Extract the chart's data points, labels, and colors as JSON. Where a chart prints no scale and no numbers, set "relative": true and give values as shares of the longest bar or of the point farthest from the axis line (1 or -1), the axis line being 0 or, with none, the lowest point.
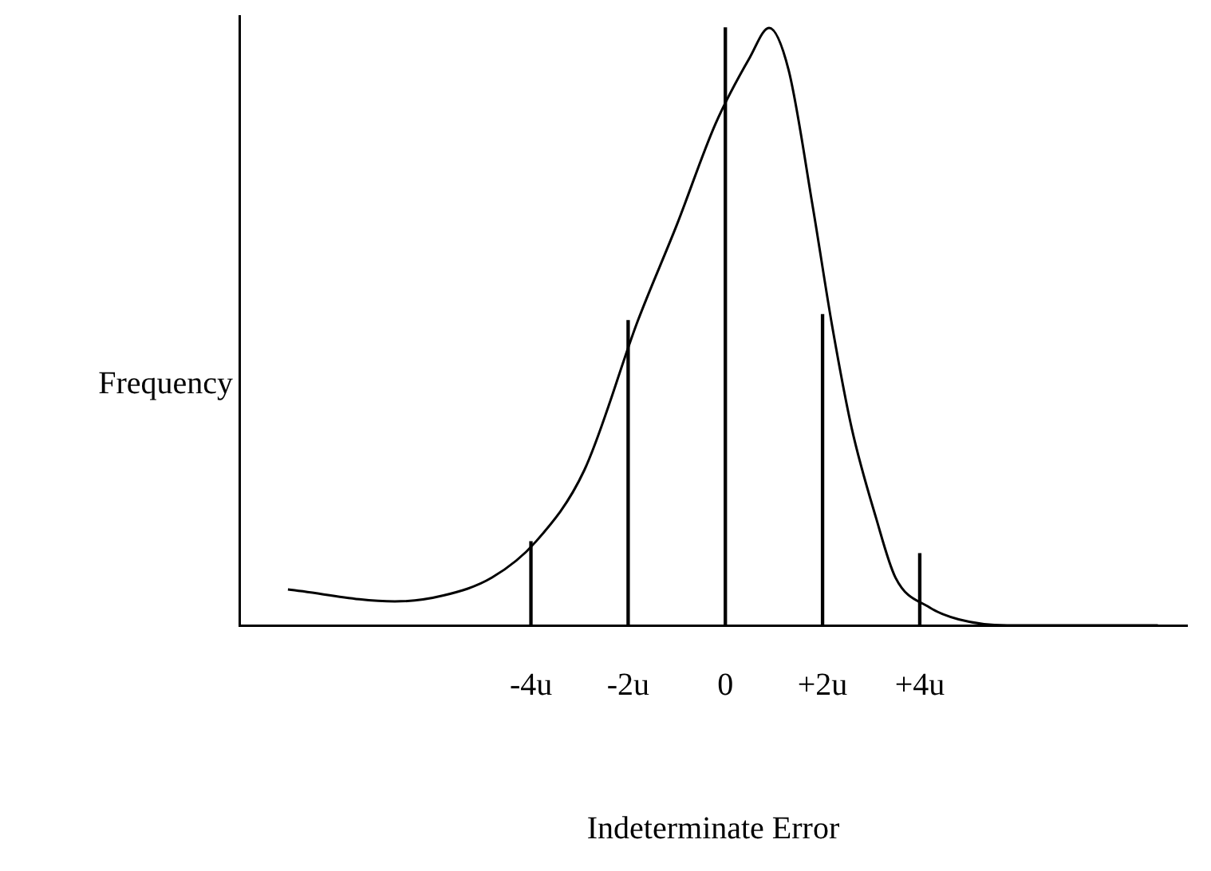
{
  "chart_data": {
    "type": "line",
    "relative": true,
    "xlabel": "Indeterminate Error",
    "ylabel": "Frequency",
    "series": [
      {
        "color": "#000000",
        "x": [
          -9,
          -6.8,
          -5.8,
          -4.8,
          -3.9,
          -2.9,
          -1.8,
          -1,
          -0.2,
          0.5,
          0.9,
          1.3,
          1.8,
          2.2,
          2.6,
          3.1,
          3.5,
          4.2,
          4.8,
          5.8,
          6.8,
          7.7,
          8.9
        ],
        "values": [
          0.06,
          0.04,
          0.05,
          0.08,
          0.14,
          0.26,
          0.51,
          0.67,
          0.84,
          0.95,
          1,
          0.93,
          0.7,
          0.5,
          0.33,
          0.18,
          0.08,
          0.03,
          0.01,
          0,
          0,
          0,
          0
        ]
      },
      {
        "type": "bar",
        "color": "#000000",
        "x": [
          -4,
          -2,
          0,
          2,
          4
        ],
        "values": [
          0.14,
          0.51,
          1,
          0.52,
          0.12
        ]
      }
    ],
    "xlim": [
      -10,
      9.5
    ],
    "xticks": [
      {
        "value": -4,
        "label": "-4u"
      },
      {
        "value": -2,
        "label": "-2u"
      },
      0,
      {
        "value": 2,
        "label": "+2u"
      },
      {
        "value": 4,
        "label": "+4u"
      }
    ],
    "grid": false,
    "legend": false,
    "marker": "none",
    "line_style": "solid"
  }
}
